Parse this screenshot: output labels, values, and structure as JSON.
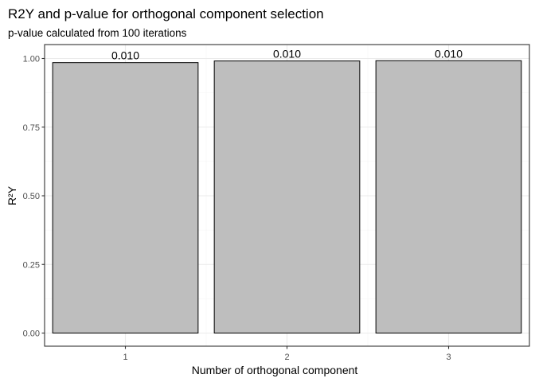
{
  "chart_data": {
    "type": "bar",
    "title": "R2Y and p-value for orthogonal component selection",
    "subtitle": "p-value calculated from 100 iterations",
    "xlabel": "Number of orthogonal component",
    "ylabel": "R²Y",
    "categories": [
      "1",
      "2",
      "3"
    ],
    "values": [
      0.985,
      0.991,
      0.992
    ],
    "data_labels": [
      "0.010",
      "0.010",
      "0.010"
    ],
    "ylim": [
      0,
      1.04
    ],
    "yticks": [
      0.0,
      0.25,
      0.5,
      0.75,
      1.0
    ],
    "ytick_labels": [
      "0.00",
      "0.25",
      "0.50",
      "0.75",
      "1.00"
    ],
    "bar_fill": "#bebebe",
    "bar_stroke": "#000000",
    "grid": true,
    "grid_major_color": "#ebebeb",
    "grid_minor_color": "#f4f4f4",
    "panel_border_color": "#333333"
  }
}
